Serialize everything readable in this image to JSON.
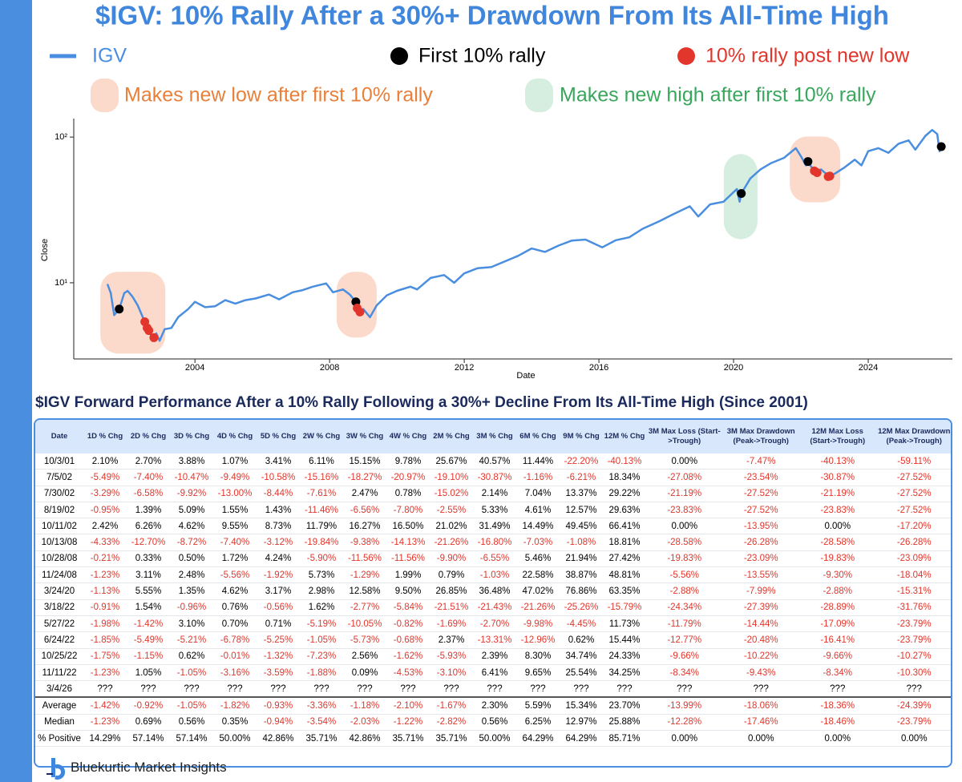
{
  "chart_data": {
    "type": "line",
    "title": "$IGV: 10% Rally After a 30%+ Drawdown From Its All-Time High",
    "x_label": "Date",
    "y_label": "Close",
    "log_y": true,
    "xlim": [
      2000.4,
      2026.5
    ],
    "xticks": [
      2004,
      2008,
      2012,
      2016,
      2020,
      2024
    ],
    "ylim": [
      3,
      134
    ],
    "yticks": [
      {
        "value": 10,
        "label": "10¹"
      },
      {
        "value": 100,
        "label": "10²"
      }
    ],
    "series": [
      {
        "name": "IGV",
        "color": "#4a8ee0",
        "mode": "line",
        "x": [
          2001.4,
          2001.5,
          2001.6,
          2001.75,
          2001.9,
          2002.0,
          2002.15,
          2002.3,
          2002.45,
          2002.51,
          2002.58,
          2002.63,
          2002.7,
          2002.78,
          2002.85,
          2002.95,
          2003.1,
          2003.3,
          2003.5,
          2003.8,
          2004.0,
          2004.3,
          2004.6,
          2004.9,
          2005.2,
          2005.5,
          2005.8,
          2006.2,
          2006.5,
          2006.9,
          2007.2,
          2007.5,
          2007.9,
          2008.1,
          2008.4,
          2008.6,
          2008.78,
          2008.82,
          2008.9,
          2009.0,
          2009.2,
          2009.4,
          2009.7,
          2010.0,
          2010.4,
          2010.6,
          2011.0,
          2011.4,
          2011.7,
          2012.0,
          2012.4,
          2012.8,
          2013.2,
          2013.6,
          2014.0,
          2014.4,
          2014.8,
          2015.2,
          2015.6,
          2016.1,
          2016.5,
          2016.9,
          2017.3,
          2017.8,
          2018.2,
          2018.7,
          2018.95,
          2019.3,
          2019.7,
          2020.1,
          2020.18,
          2020.23,
          2020.5,
          2020.8,
          2021.1,
          2021.5,
          2021.85,
          2022.0,
          2022.15,
          2022.21,
          2022.3,
          2022.4,
          2022.48,
          2022.6,
          2022.75,
          2022.81,
          2022.86,
          2023.0,
          2023.3,
          2023.6,
          2023.8,
          2024.0,
          2024.3,
          2024.6,
          2024.9,
          2025.2,
          2025.4,
          2025.7,
          2025.9,
          2026.05,
          2026.12,
          2026.17
        ],
        "values": [
          9.8,
          8.5,
          6.0,
          6.6,
          8.5,
          8.8,
          8.0,
          7.0,
          5.8,
          5.4,
          4.9,
          4.7,
          4.3,
          4.2,
          4.5,
          4.0,
          4.8,
          4.9,
          5.8,
          6.6,
          7.4,
          6.8,
          6.9,
          7.6,
          7.2,
          7.6,
          7.8,
          8.3,
          7.7,
          8.6,
          8.9,
          9.4,
          9.9,
          8.6,
          9.0,
          8.3,
          7.4,
          6.7,
          6.3,
          6.6,
          5.8,
          7.0,
          8.2,
          8.8,
          9.4,
          9.0,
          10.8,
          11.3,
          10.0,
          11.6,
          12.6,
          12.8,
          14.0,
          15.3,
          17.2,
          16.3,
          18.0,
          19.5,
          19.8,
          17.5,
          19.6,
          20.5,
          23.5,
          26.5,
          29.5,
          33.5,
          28.5,
          34.5,
          36.0,
          44.0,
          36.0,
          41.0,
          52.0,
          60.0,
          66.0,
          72.0,
          84.0,
          74.0,
          64.0,
          68.0,
          63.0,
          58.6,
          57.0,
          60.0,
          56.0,
          53.6,
          54.0,
          56.0,
          62.0,
          70.0,
          64.0,
          80.0,
          84.0,
          78.0,
          90.0,
          95.0,
          82.0,
          102.0,
          112.0,
          105.0,
          80.0,
          86.0
        ]
      },
      {
        "name": "First 10% rally",
        "color": "#000000",
        "mode": "dots",
        "x": [
          2001.75,
          2008.78,
          2020.23,
          2022.21,
          2026.17
        ],
        "values": [
          6.6,
          7.4,
          41.0,
          68.0,
          86.0
        ]
      },
      {
        "name": "10% rally post new low",
        "color": "#e2362c",
        "mode": "dots",
        "x": [
          2002.51,
          2002.58,
          2002.63,
          2002.78,
          2008.82,
          2008.9,
          2022.4,
          2022.48,
          2022.81,
          2022.86
        ],
        "values": [
          5.4,
          4.9,
          4.7,
          4.2,
          6.7,
          6.3,
          58.6,
          57.0,
          53.6,
          54.0
        ]
      }
    ],
    "highlights": [
      {
        "label": "Makes new low after first 10% rally",
        "color": "#fbdacb",
        "text_color": "#e8803a",
        "ranges": [
          {
            "x": [
              2001.19,
              2003.12
            ],
            "y": [
              3.27,
              11.9
            ]
          },
          {
            "x": [
              2008.21,
              2009.4
            ],
            "y": [
              4.21,
              11.9
            ]
          },
          {
            "x": [
              2021.67,
              2023.17
            ],
            "y": [
              35.7,
              101
            ]
          }
        ]
      },
      {
        "label": "Makes new high after first 10% rally",
        "color": "#d5eee0",
        "text_color": "#3aa65c",
        "ranges": [
          {
            "x": [
              2019.71,
              2020.71
            ],
            "y": [
              19.9,
              76.5
            ]
          }
        ]
      }
    ]
  },
  "table": {
    "title": "$IGV Forward Performance After a 10% Rally Following a 30%+ Decline From Its All-Time High (Since 2001)",
    "columns": [
      "Date",
      "1D % Chg",
      "2D % Chg",
      "3D % Chg",
      "4D % Chg",
      "5D % Chg",
      "2W % Chg",
      "3W % Chg",
      "4W % Chg",
      "2M % Chg",
      "3M % Chg",
      "6M % Chg",
      "9M % Chg",
      "12M % Chg",
      "3M Max Loss (Start->Trough)",
      "3M Max Drawdown (Peak->Trough)",
      "12M Max Loss (Start->Trough)",
      "12M Max Drawdown (Peak->Trough)"
    ],
    "rows": [
      [
        "10/3/01",
        "2.10%",
        "2.70%",
        "3.88%",
        "1.07%",
        "3.41%",
        "6.11%",
        "15.15%",
        "9.78%",
        "25.67%",
        "40.57%",
        "11.44%",
        "-22.20%",
        "-40.13%",
        "0.00%",
        "-7.47%",
        "-40.13%",
        "-59.11%"
      ],
      [
        "7/5/02",
        "-5.49%",
        "-7.40%",
        "-10.47%",
        "-9.49%",
        "-10.58%",
        "-15.16%",
        "-18.27%",
        "-20.97%",
        "-19.10%",
        "-30.87%",
        "-1.16%",
        "-6.21%",
        "18.34%",
        "-27.08%",
        "-23.54%",
        "-30.87%",
        "-27.52%"
      ],
      [
        "7/30/02",
        "-3.29%",
        "-6.58%",
        "-9.92%",
        "-13.00%",
        "-8.44%",
        "-7.61%",
        "2.47%",
        "0.78%",
        "-15.02%",
        "2.14%",
        "7.04%",
        "13.37%",
        "29.22%",
        "-21.19%",
        "-27.52%",
        "-21.19%",
        "-27.52%"
      ],
      [
        "8/19/02",
        "-0.95%",
        "1.39%",
        "5.09%",
        "1.55%",
        "1.43%",
        "-11.46%",
        "-6.56%",
        "-7.80%",
        "-2.55%",
        "5.33%",
        "4.61%",
        "12.57%",
        "29.63%",
        "-23.83%",
        "-27.52%",
        "-23.83%",
        "-27.52%"
      ],
      [
        "10/11/02",
        "2.42%",
        "6.26%",
        "4.62%",
        "9.55%",
        "8.73%",
        "11.79%",
        "16.27%",
        "16.50%",
        "21.02%",
        "31.49%",
        "14.49%",
        "49.45%",
        "66.41%",
        "0.00%",
        "-13.95%",
        "0.00%",
        "-17.20%"
      ],
      [
        "10/13/08",
        "-4.33%",
        "-12.70%",
        "-8.72%",
        "-7.40%",
        "-3.12%",
        "-19.84%",
        "-9.38%",
        "-14.13%",
        "-21.26%",
        "-16.80%",
        "-7.03%",
        "-1.08%",
        "18.81%",
        "-28.58%",
        "-26.28%",
        "-28.58%",
        "-26.28%"
      ],
      [
        "10/28/08",
        "-0.21%",
        "0.33%",
        "0.50%",
        "1.72%",
        "4.24%",
        "-5.90%",
        "-11.56%",
        "-11.56%",
        "-9.90%",
        "-6.55%",
        "5.46%",
        "21.94%",
        "27.42%",
        "-19.83%",
        "-23.09%",
        "-19.83%",
        "-23.09%"
      ],
      [
        "11/24/08",
        "-1.23%",
        "3.11%",
        "2.48%",
        "-5.56%",
        "-1.92%",
        "5.73%",
        "-1.29%",
        "1.99%",
        "0.79%",
        "-1.03%",
        "22.58%",
        "38.87%",
        "48.81%",
        "-5.56%",
        "-13.55%",
        "-9.30%",
        "-18.04%"
      ],
      [
        "3/24/20",
        "-1.13%",
        "5.55%",
        "1.35%",
        "4.62%",
        "3.17%",
        "2.98%",
        "12.58%",
        "9.50%",
        "26.85%",
        "36.48%",
        "47.02%",
        "76.86%",
        "63.35%",
        "-2.88%",
        "-7.99%",
        "-2.88%",
        "-15.31%"
      ],
      [
        "3/18/22",
        "-0.91%",
        "1.54%",
        "-0.96%",
        "0.76%",
        "-0.56%",
        "1.62%",
        "-2.77%",
        "-5.84%",
        "-21.51%",
        "-21.43%",
        "-21.26%",
        "-25.26%",
        "-15.79%",
        "-24.34%",
        "-27.39%",
        "-28.89%",
        "-31.76%"
      ],
      [
        "5/27/22",
        "-1.98%",
        "-1.42%",
        "3.10%",
        "0.70%",
        "0.71%",
        "-5.19%",
        "-10.05%",
        "-0.82%",
        "-1.69%",
        "-2.70%",
        "-9.98%",
        "-4.45%",
        "11.73%",
        "-11.79%",
        "-14.44%",
        "-17.09%",
        "-23.79%"
      ],
      [
        "6/24/22",
        "-1.85%",
        "-5.49%",
        "-5.21%",
        "-6.78%",
        "-5.25%",
        "-1.05%",
        "-5.73%",
        "-0.68%",
        "2.37%",
        "-13.31%",
        "-12.96%",
        "0.62%",
        "15.44%",
        "-12.77%",
        "-20.48%",
        "-16.41%",
        "-23.79%"
      ],
      [
        "10/25/22",
        "-1.75%",
        "-1.15%",
        "0.62%",
        "-0.01%",
        "-1.32%",
        "-7.23%",
        "2.56%",
        "-1.62%",
        "-5.93%",
        "2.39%",
        "8.30%",
        "34.74%",
        "24.33%",
        "-9.66%",
        "-10.22%",
        "-9.66%",
        "-10.27%"
      ],
      [
        "11/11/22",
        "-1.23%",
        "1.05%",
        "-1.05%",
        "-3.16%",
        "-3.59%",
        "-1.88%",
        "0.09%",
        "-4.53%",
        "-3.10%",
        "6.41%",
        "9.65%",
        "25.54%",
        "34.25%",
        "-8.34%",
        "-9.43%",
        "-8.34%",
        "-10.30%"
      ],
      [
        "3/4/26",
        "???",
        "???",
        "???",
        "???",
        "???",
        "???",
        "???",
        "???",
        "???",
        "???",
        "???",
        "???",
        "???",
        "???",
        "???",
        "???",
        "???"
      ]
    ],
    "summary_rows": [
      [
        "Average",
        "-1.42%",
        "-0.92%",
        "-1.05%",
        "-1.82%",
        "-0.93%",
        "-3.36%",
        "-1.18%",
        "-2.10%",
        "-1.67%",
        "2.30%",
        "5.59%",
        "15.34%",
        "23.70%",
        "-13.99%",
        "-18.06%",
        "-18.36%",
        "-24.39%"
      ],
      [
        "Median",
        "-1.23%",
        "0.69%",
        "0.56%",
        "0.35%",
        "-0.94%",
        "-3.54%",
        "-2.03%",
        "-1.22%",
        "-2.82%",
        "0.56%",
        "6.25%",
        "12.97%",
        "25.88%",
        "-12.28%",
        "-17.46%",
        "-18.46%",
        "-23.79%"
      ],
      [
        "% Positive",
        "14.29%",
        "57.14%",
        "57.14%",
        "50.00%",
        "42.86%",
        "35.71%",
        "42.86%",
        "35.71%",
        "35.71%",
        "50.00%",
        "64.29%",
        "64.29%",
        "85.71%",
        "0.00%",
        "0.00%",
        "0.00%",
        "0.00%"
      ]
    ]
  },
  "footer": "Bluekurtic Market Insights"
}
